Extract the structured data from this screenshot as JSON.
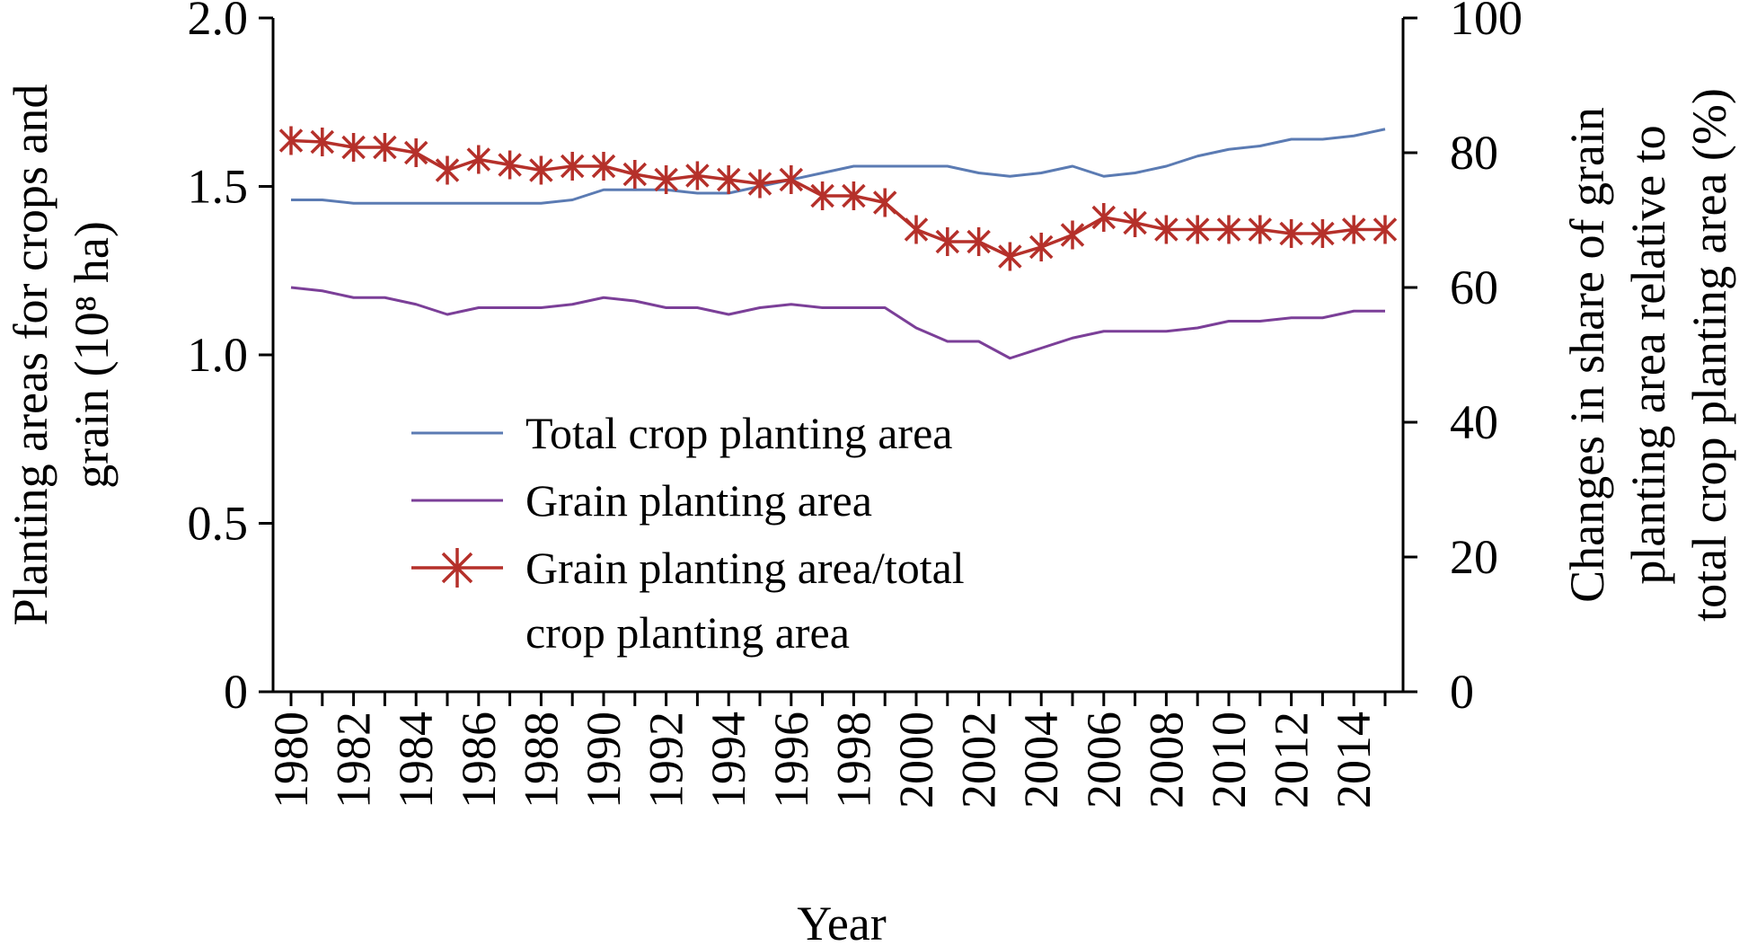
{
  "chart_data": {
    "type": "line",
    "xlabel": "Year",
    "ylabel_left": "Planting areas for crops and grain (10⁸ ha)",
    "ylabel_left_lines": [
      "Planting areas for crops and",
      "grain (10⁸ ha)"
    ],
    "ylabel_right": "Changes in share of grain planting area relative to total crop planting area (%)",
    "ylabel_right_lines": [
      "Changes in share of grain",
      "planting area relative to",
      "total crop planting area (%)"
    ],
    "xlim": [
      1980,
      2015
    ],
    "ylim_left": [
      0,
      2.0
    ],
    "ylim_right": [
      0,
      100
    ],
    "x_tick_labels": [
      "1980",
      "1982",
      "1984",
      "1986",
      "1988",
      "1990",
      "1992",
      "1994",
      "1996",
      "1998",
      "2000",
      "2002",
      "2004",
      "2006",
      "2008",
      "2010",
      "2012",
      "2014"
    ],
    "y_left_tick_labels": [
      "0",
      "0.5",
      "1.0",
      "1.5",
      "2.0"
    ],
    "y_right_tick_labels": [
      "0",
      "20",
      "40",
      "60",
      "80",
      "100"
    ],
    "x": [
      1980,
      1981,
      1982,
      1983,
      1984,
      1985,
      1986,
      1987,
      1988,
      1989,
      1990,
      1991,
      1992,
      1993,
      1994,
      1995,
      1996,
      1997,
      1998,
      1999,
      2000,
      2001,
      2002,
      2003,
      2004,
      2005,
      2006,
      2007,
      2008,
      2009,
      2010,
      2011,
      2012,
      2013,
      2014,
      2015
    ],
    "series": [
      {
        "name": "Total crop planting area",
        "axis": "left",
        "color": "#5b7bb3",
        "marker": "none",
        "values": [
          1.46,
          1.46,
          1.45,
          1.45,
          1.45,
          1.45,
          1.45,
          1.45,
          1.45,
          1.46,
          1.49,
          1.49,
          1.49,
          1.48,
          1.48,
          1.5,
          1.52,
          1.54,
          1.56,
          1.56,
          1.56,
          1.56,
          1.54,
          1.53,
          1.54,
          1.56,
          1.53,
          1.54,
          1.56,
          1.59,
          1.61,
          1.62,
          1.64,
          1.64,
          1.65,
          1.67
        ]
      },
      {
        "name": "Grain planting area",
        "axis": "left",
        "color": "#7b3f98",
        "marker": "none",
        "values": [
          1.2,
          1.19,
          1.17,
          1.17,
          1.15,
          1.12,
          1.14,
          1.14,
          1.14,
          1.15,
          1.17,
          1.16,
          1.14,
          1.14,
          1.12,
          1.14,
          1.15,
          1.14,
          1.14,
          1.14,
          1.08,
          1.04,
          1.04,
          0.99,
          1.02,
          1.05,
          1.07,
          1.07,
          1.07,
          1.08,
          1.1,
          1.1,
          1.11,
          1.11,
          1.13,
          1.13
        ]
      },
      {
        "name": "Grain planting area/total crop planting area",
        "legend_lines": [
          "Grain planting area/total",
          "crop planting area"
        ],
        "axis": "right",
        "color": "#b5302a",
        "marker": "x",
        "values": [
          81.8,
          81.6,
          80.8,
          80.8,
          80.0,
          77.4,
          79.0,
          78.2,
          77.4,
          78.0,
          78.0,
          76.8,
          76.0,
          76.6,
          76.0,
          75.4,
          76.0,
          73.6,
          73.6,
          72.6,
          68.6,
          66.8,
          66.8,
          64.6,
          66.0,
          67.8,
          70.4,
          69.6,
          68.6,
          68.6,
          68.6,
          68.6,
          68.0,
          68.0,
          68.6,
          68.6
        ]
      }
    ],
    "grid": false,
    "legend_position": "center-left, inside plot"
  }
}
